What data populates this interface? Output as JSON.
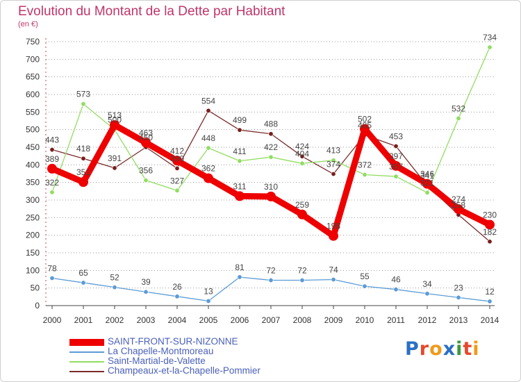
{
  "title": "Evolution du Montant de la Dette par Habitant",
  "subtitle": "(en €)",
  "logo": {
    "text": "Proxiti",
    "colors": [
      "#2a6fc4",
      "#e8482a",
      "#f09a1a",
      "#2a6fc4",
      "#3a9a3a",
      "#e8482a",
      "#f09a1a"
    ]
  },
  "chart_data": {
    "type": "line",
    "title": "Evolution du Montant de la Dette par Habitant",
    "ylabel": "(en €)",
    "x": [
      "2000",
      "2001",
      "2002",
      "2003",
      "2004",
      "2005",
      "2006",
      "2007",
      "2008",
      "2009",
      "2010",
      "2011",
      "2012",
      "2013",
      "2014"
    ],
    "ylim": [
      0,
      750
    ],
    "yticks": [
      0,
      50,
      100,
      150,
      200,
      250,
      300,
      350,
      400,
      450,
      500,
      550,
      600,
      650,
      700,
      750
    ],
    "grid": "horizontal-dotted",
    "legend_position": "bottom-left",
    "series": [
      {
        "name": "SAINT-FRONT-SUR-NIZONNE",
        "color": "#ee0000",
        "values": [
          389,
          351,
          513,
          463,
          412,
          362,
          311,
          310,
          259,
          198,
          502,
          397,
          346,
          274,
          230
        ],
        "labels": [
          "389",
          "351",
          "513",
          "463",
          "412",
          "362",
          "311",
          "310",
          "259",
          "198",
          "502",
          "397",
          "346",
          "274",
          "230"
        ]
      },
      {
        "name": "La Chapelle-Montmoreau",
        "color": "#5b9bd5",
        "values": [
          78,
          65,
          52,
          39,
          26,
          13,
          81,
          72,
          72,
          74,
          55,
          46,
          34,
          23,
          12
        ],
        "labels": [
          "78",
          "65",
          "52",
          "39",
          "26",
          "13",
          "81",
          "72",
          "72",
          "74",
          "55",
          "46",
          "34",
          "23",
          "12"
        ]
      },
      {
        "name": "Saint-Martial-de-Valette",
        "color": "#90dd60",
        "values": [
          322,
          573,
          500,
          356,
          327,
          448,
          411,
          422,
          404,
          413,
          372,
          367,
          321,
          532,
          734
        ],
        "labels": [
          "322",
          "573",
          "500",
          "356",
          "327",
          "448",
          "411",
          "422",
          "404",
          "413",
          "372",
          "367",
          "321",
          "532",
          "734"
        ]
      },
      {
        "name": "Champeaux-et-la-Chapelle-Pommier",
        "color": "#7a2a2a",
        "values": [
          443,
          418,
          391,
          450,
          390,
          554,
          499,
          488,
          424,
          374,
          485,
          453,
          341,
          258,
          182
        ],
        "labels": [
          "443",
          "418",
          "391",
          "450",
          "390",
          "554",
          "499",
          "488",
          "424",
          "374",
          "485",
          "453",
          "341",
          "258",
          "182"
        ]
      }
    ]
  }
}
